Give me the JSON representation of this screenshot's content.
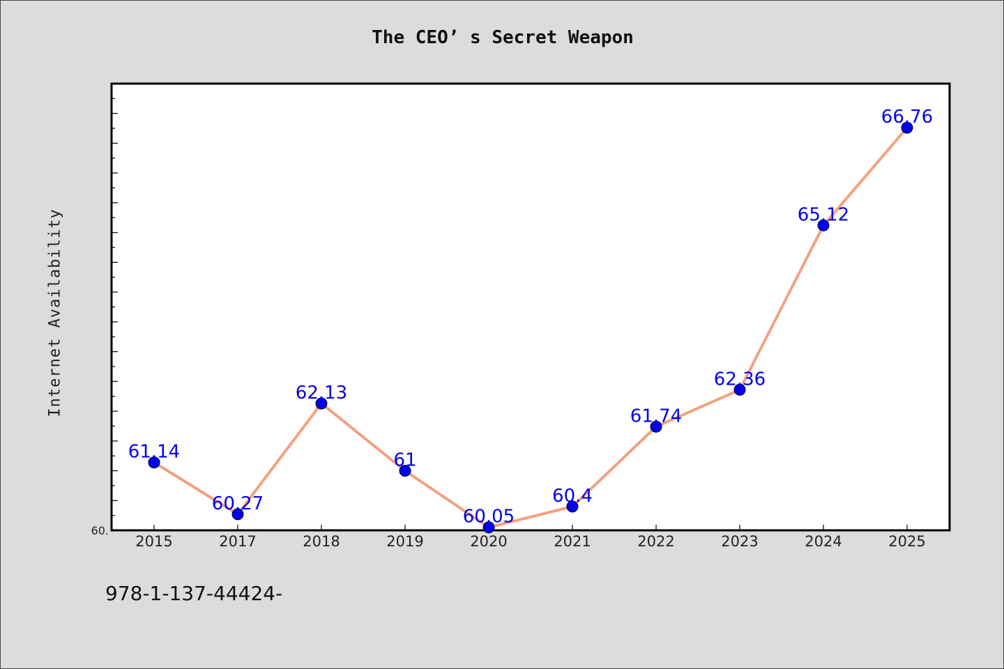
{
  "chart_data": {
    "type": "line",
    "title": "The CEO’ s Secret Weapon",
    "xlabel": "",
    "ylabel": "Internet Availability",
    "categories": [
      "2015",
      "2017",
      "2018",
      "2019",
      "2020",
      "2021",
      "2022",
      "2023",
      "2024",
      "2025"
    ],
    "series": [
      {
        "values": [
          61.14,
          60.27,
          62.13,
          61,
          60.05,
          60.4,
          61.74,
          62.36,
          65.12,
          66.76
        ],
        "labels": [
          "61.14",
          "60.27",
          "62.13",
          "61",
          "60.05",
          "60.4",
          "61.74",
          "62.36",
          "65.12",
          "66.76"
        ]
      }
    ],
    "ylim": [
      60,
      67.5
    ],
    "y_tick_label": "60.",
    "grid": false,
    "line_color": "#f4a07f",
    "marker_color": "#0000ee",
    "label_color": "#0000ee"
  },
  "footer_text": "978-1-137-44424-"
}
